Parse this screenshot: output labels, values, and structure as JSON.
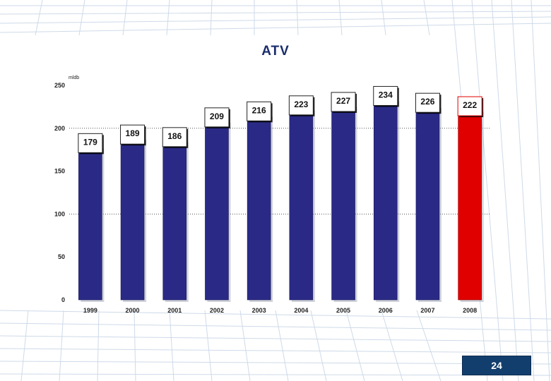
{
  "slide": {
    "title": "ATV",
    "page_number": "24"
  },
  "chart_data": {
    "type": "bar",
    "title": "ATV",
    "unit_label": "mldb",
    "categories": [
      "1999",
      "2000",
      "2001",
      "2002",
      "2003",
      "2004",
      "2005",
      "2006",
      "2007",
      "2008"
    ],
    "values": [
      179,
      189,
      186,
      209,
      216,
      223,
      227,
      234,
      226,
      222
    ],
    "data_labels": [
      "179",
      "189",
      "186",
      "209",
      "216",
      "223",
      "227",
      "234",
      "226",
      "222"
    ],
    "yticks": [
      "0",
      "50",
      "100",
      "150",
      "200",
      "250"
    ],
    "ylim": [
      0,
      250
    ],
    "highlight_index": 9,
    "colors": {
      "bar": "#2a2a86",
      "highlight_bar": "#e00000",
      "title": "#1a2d6b",
      "page_box": "#123e6e"
    },
    "gridlines_at": [
      100,
      200
    ]
  }
}
